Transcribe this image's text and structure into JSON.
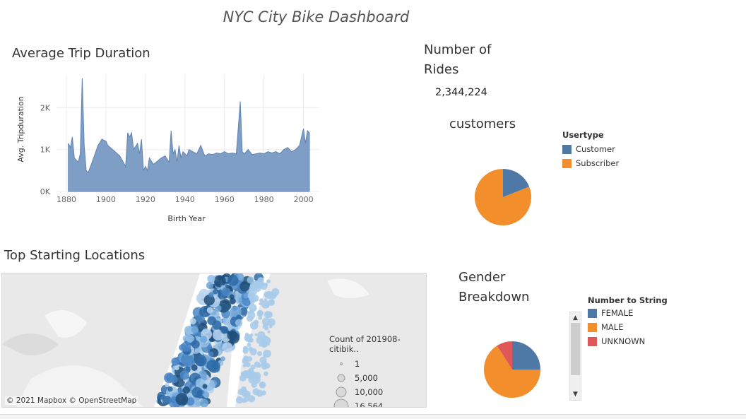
{
  "dashboard": {
    "title": "NYC City Bike Dashboard"
  },
  "trip_duration": {
    "title": "Average Trip Duration",
    "chart_data": {
      "type": "area",
      "xlabel": "Birth Year",
      "ylabel": "Avg. Tripduration",
      "xlim": [
        1875,
        2008
      ],
      "ylim": [
        0,
        2800
      ],
      "x_ticks": [
        "1880",
        "1900",
        "1920",
        "1940",
        "1960",
        "1980",
        "2000"
      ],
      "y_ticks": [
        "0K",
        "1K",
        "2K"
      ],
      "grid": true,
      "series": [
        {
          "color": "#7193c0",
          "x": [
            1881,
            1882,
            1883,
            1884,
            1886,
            1887,
            1888,
            1889,
            1890,
            1891,
            1893,
            1896,
            1898,
            1900,
            1901,
            1907,
            1910,
            1911,
            1912,
            1913,
            1914,
            1916,
            1917,
            1918,
            1919,
            1920,
            1921,
            1922,
            1924,
            1926,
            1928,
            1930,
            1932,
            1933,
            1934,
            1935,
            1936,
            1937,
            1938,
            1939,
            1940,
            1941,
            1942,
            1944,
            1946,
            1948,
            1950,
            1952,
            1954,
            1956,
            1958,
            1960,
            1962,
            1964,
            1966,
            1968,
            1969,
            1970,
            1972,
            1974,
            1976,
            1978,
            1980,
            1982,
            1984,
            1986,
            1988,
            1990,
            1992,
            1994,
            1996,
            1998,
            2000,
            2001,
            2002,
            2003
          ],
          "values": [
            1150,
            1050,
            1300,
            800,
            700,
            900,
            2700,
            1100,
            500,
            450,
            700,
            1100,
            1250,
            1200,
            1100,
            850,
            600,
            1400,
            1300,
            1400,
            1000,
            1150,
            900,
            1250,
            500,
            600,
            500,
            800,
            650,
            720,
            800,
            850,
            700,
            1450,
            900,
            1000,
            700,
            1100,
            800,
            950,
            900,
            850,
            1000,
            950,
            900,
            1100,
            850,
            900,
            880,
            920,
            900,
            950,
            900,
            920,
            900,
            2150,
            950,
            900,
            1000,
            880,
            900,
            920,
            900,
            950,
            920,
            950,
            900,
            1000,
            1050,
            950,
            1000,
            1100,
            1500,
            1150,
            1450,
            1400
          ]
        }
      ]
    }
  },
  "rides": {
    "title": "Number of Rides",
    "value": "2,344,224"
  },
  "customers": {
    "title": "customers",
    "legend_title": "Usertype",
    "chart_data": {
      "type": "pie",
      "categories": [
        "Customer",
        "Subscriber"
      ],
      "values": [
        19,
        81
      ],
      "colors": [
        "#4e79a7",
        "#f28e2b"
      ]
    }
  },
  "locations": {
    "title": "Top Starting Locations",
    "attribution": "© 2021 Mapbox © OpenStreetMap",
    "size_legend_title": "Count of 201908-citibik..",
    "size_legend": [
      "1",
      "5,000",
      "10,000",
      "16,564"
    ]
  },
  "gender": {
    "title": "Gender Breakdown",
    "legend_title": "Number to String",
    "chart_data": {
      "type": "pie",
      "categories": [
        "FEMALE",
        "MALE",
        "UNKNOWN"
      ],
      "values": [
        25,
        66,
        9
      ],
      "colors": [
        "#4e79a7",
        "#f28e2b",
        "#e15759"
      ]
    }
  }
}
